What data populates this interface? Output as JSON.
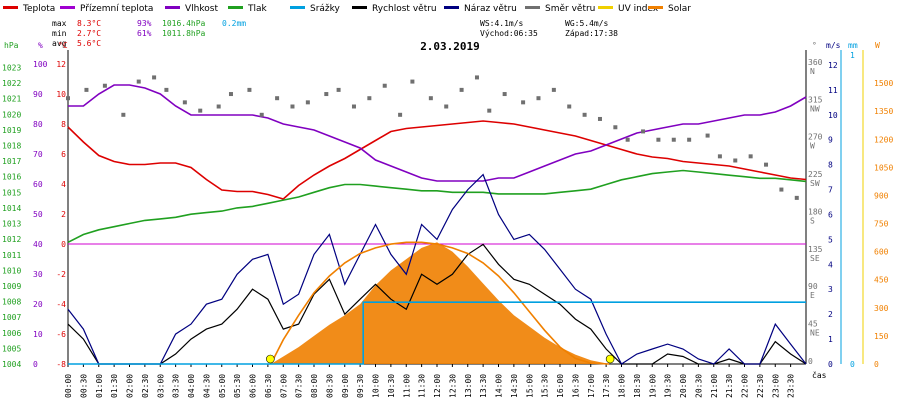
{
  "chart_data": {
    "type": "line",
    "title": "2.03.2019",
    "xlabel": "čas",
    "legend": [
      {
        "label": "Teplota",
        "color": "#dd0000"
      },
      {
        "label": "Přízemní teplota",
        "color": "#a000d0"
      },
      {
        "label": "Vlhkost",
        "color": "#8000c0"
      },
      {
        "label": "Tlak",
        "color": "#20a020"
      },
      {
        "label": "Srážky",
        "color": "#00a0e0"
      },
      {
        "label": "Rychlost větru",
        "color": "#000000"
      },
      {
        "label": "Náraz větru",
        "color": "#000080"
      },
      {
        "label": "Směr větru",
        "color": "#707070"
      },
      {
        "label": "UV index",
        "color": "#f0d000"
      },
      {
        "label": "Solar",
        "color": "#f08000"
      }
    ],
    "stats": {
      "max": {
        "label": "max",
        "temp": "8.3°C",
        "hum": "93%",
        "press": "1016.4hPa",
        "rain": "0.2mm"
      },
      "min": {
        "label": "min",
        "temp": "2.7°C",
        "hum": "61%",
        "press": "1011.8hPa"
      },
      "avg": {
        "label": "avg",
        "temp": "5.6°C"
      }
    },
    "wind_info": {
      "ws": "WS:4.1m/s",
      "wg": "WG:5.4m/s"
    },
    "sun": {
      "rise": "Východ:06:35",
      "set": "Západ:17:38"
    },
    "axis_units": {
      "hpa": "hPa",
      "pct": "%",
      "c": "°C",
      "dir": "°",
      "ms": "m/s",
      "mm": "mm",
      "w": "W"
    },
    "x_ticks": [
      "00:00",
      "00:30",
      "01:00",
      "01:30",
      "02:00",
      "02:30",
      "03:00",
      "03:30",
      "04:00",
      "04:30",
      "05:00",
      "05:30",
      "06:00",
      "06:30",
      "07:00",
      "07:30",
      "08:00",
      "08:30",
      "09:00",
      "09:30",
      "10:00",
      "10:30",
      "11:00",
      "11:30",
      "12:00",
      "12:30",
      "13:00",
      "13:30",
      "14:00",
      "14:30",
      "15:00",
      "15:30",
      "16:00",
      "16:30",
      "17:00",
      "17:30",
      "18:00",
      "18:30",
      "19:00",
      "19:30",
      "20:00",
      "20:30",
      "21:00",
      "21:30",
      "22:00",
      "22:30",
      "23:00",
      "23:30"
    ],
    "y_pressure": {
      "ticks": [
        "1023",
        "1022",
        "1021",
        "1020",
        "1019",
        "1018",
        "1017",
        "1016",
        "1015",
        "1014",
        "1013",
        "1012",
        "1011",
        "1010",
        "1009",
        "1008",
        "1007",
        "1006",
        "1005",
        "1004"
      ],
      "ylim": [
        1004,
        1023.8
      ]
    },
    "y_humidity": {
      "ticks": [
        "100",
        "90",
        "80",
        "70",
        "60",
        "50",
        "40",
        "30",
        "20",
        "10",
        "0"
      ],
      "ylim": [
        0,
        103
      ]
    },
    "y_temp": {
      "ticks": [
        "12",
        "10",
        "8",
        "6",
        "4",
        "2",
        "0",
        "-2",
        "-4",
        "-6",
        "-8"
      ],
      "ylim": [
        -8,
        12.6
      ]
    },
    "y_dir": {
      "ticks": [
        {
          "v": 360,
          "l": "360",
          "d": "N"
        },
        {
          "v": 315,
          "l": "315",
          "d": "NW"
        },
        {
          "v": 270,
          "l": "270",
          "d": "W"
        },
        {
          "v": 225,
          "l": "225",
          "d": "SW"
        },
        {
          "v": 180,
          "l": "180",
          "d": "S"
        },
        {
          "v": 135,
          "l": "135",
          "d": "SE"
        },
        {
          "v": 90,
          "l": "90",
          "d": "E"
        },
        {
          "v": 45,
          "l": "45",
          "d": "NE"
        },
        {
          "v": 0,
          "l": "0",
          "d": ""
        }
      ],
      "ylim": [
        0,
        372
      ]
    },
    "y_wind": {
      "ticks": [
        "12",
        "11",
        "10",
        "9",
        "8",
        "7",
        "6",
        "5",
        "4",
        "3",
        "2",
        "1",
        "0"
      ],
      "ylim": [
        0,
        12.4
      ]
    },
    "y_rain": {
      "ticks": [
        "1",
        "0"
      ],
      "ylim": [
        0,
        1
      ]
    },
    "y_solar": {
      "ticks": [
        "1500",
        "1350",
        "1200",
        "1050",
        "900",
        "750",
        "600",
        "450",
        "300",
        "150",
        "0"
      ],
      "ylim": [
        0,
        1650
      ]
    },
    "series": [
      {
        "name": "Teplota",
        "color": "#dd0000",
        "axis": "temp",
        "x": [
          0,
          0.5,
          1,
          1.5,
          2,
          2.5,
          3,
          3.5,
          4,
          4.5,
          5,
          5.5,
          6,
          6.5,
          7,
          7.5,
          8,
          8.5,
          9,
          9.5,
          10,
          10.5,
          11,
          11.5,
          12,
          12.5,
          13,
          13.5,
          14,
          14.5,
          15,
          15.5,
          16,
          16.5,
          17,
          17.5,
          18,
          18.5,
          19,
          19.5,
          20,
          20.5,
          21,
          21.5,
          22,
          22.5,
          23,
          23.5,
          24
        ],
        "y": [
          7.8,
          6.8,
          5.9,
          5.5,
          5.3,
          5.3,
          5.4,
          5.4,
          5.1,
          4.3,
          3.6,
          3.5,
          3.5,
          3.3,
          3.0,
          3.9,
          4.6,
          5.2,
          5.7,
          6.3,
          6.9,
          7.5,
          7.7,
          7.8,
          7.9,
          8.0,
          8.1,
          8.2,
          8.1,
          8.0,
          7.8,
          7.6,
          7.4,
          7.2,
          6.9,
          6.6,
          6.3,
          6.0,
          5.8,
          5.7,
          5.5,
          5.4,
          5.3,
          5.2,
          5.0,
          4.8,
          4.6,
          4.4,
          4.3
        ]
      },
      {
        "name": "Vlhkost",
        "color": "#8000c0",
        "axis": "humidity",
        "x": [
          0,
          0.5,
          1,
          1.5,
          2,
          2.5,
          3,
          3.5,
          4,
          4.5,
          5,
          5.5,
          6,
          6.5,
          7,
          7.5,
          8,
          8.5,
          9,
          9.5,
          10,
          10.5,
          11,
          11.5,
          12,
          12.5,
          13,
          13.5,
          14,
          14.5,
          15,
          15.5,
          16,
          16.5,
          17,
          17.5,
          18,
          18.5,
          19,
          19.5,
          20,
          20.5,
          21,
          21.5,
          22,
          22.5,
          23,
          23.5,
          24
        ],
        "y": [
          86,
          86,
          90,
          93,
          93,
          92,
          90,
          86,
          83,
          83,
          83,
          83,
          83,
          82,
          80,
          79,
          78,
          76,
          74,
          72,
          68,
          66,
          64,
          62,
          61,
          61,
          61,
          61,
          62,
          62,
          64,
          66,
          68,
          70,
          71,
          73,
          75,
          77,
          78,
          79,
          80,
          80,
          81,
          82,
          83,
          83,
          84,
          86,
          89
        ]
      },
      {
        "name": "Tlak",
        "color": "#20a020",
        "axis": "pressure",
        "x": [
          0,
          0.5,
          1,
          1.5,
          2,
          2.5,
          3,
          3.5,
          4,
          4.5,
          5,
          5.5,
          6,
          6.5,
          7,
          7.5,
          8,
          8.5,
          9,
          9.5,
          10,
          10.5,
          11,
          11.5,
          12,
          12.5,
          13,
          13.5,
          14,
          14.5,
          15,
          15.5,
          16,
          16.5,
          17,
          17.5,
          18,
          18.5,
          19,
          19.5,
          20,
          20.5,
          21,
          21.5,
          22,
          22.5,
          23,
          23.5,
          24
        ],
        "y": [
          1011.8,
          1012.3,
          1012.6,
          1012.8,
          1013.0,
          1013.2,
          1013.3,
          1013.4,
          1013.6,
          1013.7,
          1013.8,
          1014.0,
          1014.1,
          1014.3,
          1014.5,
          1014.7,
          1015.0,
          1015.3,
          1015.5,
          1015.5,
          1015.4,
          1015.3,
          1015.2,
          1015.1,
          1015.1,
          1015.0,
          1015.0,
          1015.0,
          1014.9,
          1014.9,
          1014.9,
          1014.9,
          1015.0,
          1015.1,
          1015.2,
          1015.5,
          1015.8,
          1016.0,
          1016.2,
          1016.3,
          1016.4,
          1016.3,
          1016.2,
          1016.1,
          1016.0,
          1015.9,
          1015.9,
          1015.8,
          1015.7
        ]
      },
      {
        "name": "Směr větru",
        "color": "#707070",
        "axis": "dir",
        "kind": "scatter",
        "x": [
          0,
          0.6,
          1.2,
          1.8,
          2.3,
          2.8,
          3.2,
          3.8,
          4.3,
          4.9,
          5.3,
          5.9,
          6.3,
          6.8,
          7.3,
          7.8,
          8.4,
          8.8,
          9.3,
          9.8,
          10.3,
          10.8,
          11.2,
          11.8,
          12.3,
          12.8,
          13.3,
          13.7,
          14.2,
          14.8,
          15.3,
          15.8,
          16.3,
          16.8,
          17.3,
          17.8,
          18.2,
          18.7,
          19.2,
          19.7,
          20.2,
          20.8,
          21.2,
          21.7,
          22.2,
          22.7,
          23.2,
          23.7
        ],
        "y": [
          320,
          330,
          335,
          300,
          340,
          345,
          330,
          315,
          305,
          310,
          325,
          330,
          300,
          320,
          310,
          315,
          325,
          330,
          310,
          320,
          335,
          300,
          340,
          320,
          310,
          330,
          345,
          305,
          325,
          315,
          320,
          330,
          310,
          300,
          295,
          285,
          270,
          280,
          270,
          270,
          270,
          275,
          250,
          245,
          250,
          240,
          210,
          200
        ]
      },
      {
        "name": "Rychlost větru",
        "color": "#000000",
        "axis": "wind",
        "x": [
          0,
          0.5,
          1,
          1.5,
          2,
          2.5,
          3,
          3.5,
          4,
          4.5,
          5,
          5.5,
          6,
          6.5,
          7,
          7.5,
          8,
          8.5,
          9,
          9.5,
          10,
          10.5,
          11,
          11.5,
          12,
          12.5,
          13,
          13.5,
          14,
          14.5,
          15,
          15.5,
          16,
          16.5,
          17,
          17.5,
          18,
          18.5,
          19,
          19.5,
          20,
          20.5,
          21,
          21.5,
          22,
          22.5,
          23,
          23.5,
          24
        ],
        "y": [
          1.6,
          1.0,
          0,
          0,
          0,
          0,
          0,
          0.4,
          1.0,
          1.4,
          1.6,
          2.2,
          3.0,
          2.6,
          1.4,
          1.6,
          2.8,
          3.4,
          2.0,
          2.6,
          3.2,
          2.6,
          2.2,
          3.6,
          3.2,
          3.6,
          4.4,
          4.8,
          4.0,
          3.4,
          3.2,
          2.8,
          2.4,
          1.8,
          1.4,
          0.6,
          0,
          0,
          0,
          0.4,
          0.3,
          0,
          0,
          0.2,
          0,
          0,
          0.9,
          0.4,
          0
        ]
      },
      {
        "name": "Náraz větru",
        "color": "#000080",
        "axis": "wind",
        "x": [
          0,
          0.5,
          1,
          1.5,
          2,
          2.5,
          3,
          3.5,
          4,
          4.5,
          5,
          5.5,
          6,
          6.5,
          7,
          7.5,
          8,
          8.5,
          9,
          9.5,
          10,
          10.5,
          11,
          11.5,
          12,
          12.5,
          13,
          13.5,
          14,
          14.5,
          15,
          15.5,
          16,
          16.5,
          17,
          17.5,
          18,
          18.5,
          19,
          19.5,
          20,
          20.5,
          21,
          21.5,
          22,
          22.5,
          23,
          23.5,
          24
        ],
        "y": [
          2.2,
          1.4,
          0,
          0,
          0,
          0,
          0,
          1.2,
          1.6,
          2.4,
          2.6,
          3.6,
          4.2,
          4.4,
          2.4,
          2.8,
          4.4,
          5.2,
          3.2,
          4.4,
          5.6,
          4.4,
          3.6,
          5.6,
          5.0,
          6.2,
          7.0,
          7.6,
          6.0,
          5.0,
          5.2,
          4.6,
          3.8,
          3.0,
          2.6,
          1.2,
          0,
          0.4,
          0.6,
          0.8,
          0.6,
          0.2,
          0,
          0.6,
          0,
          0,
          1.6,
          0.8,
          0
        ]
      },
      {
        "name": "Solar",
        "color": "#f08000",
        "axis": "solar",
        "kind": "area",
        "x": [
          6.6,
          7,
          7.5,
          8,
          8.5,
          9,
          9.5,
          10,
          10.5,
          11,
          11.5,
          12,
          12.5,
          13,
          13.5,
          14,
          14.5,
          15,
          15.5,
          16,
          16.5,
          17,
          17.6
        ],
        "y": [
          0,
          40,
          90,
          150,
          210,
          260,
          320,
          420,
          500,
          560,
          620,
          650,
          600,
          520,
          430,
          340,
          260,
          200,
          140,
          90,
          50,
          20,
          0
        ]
      },
      {
        "name": "Solar max",
        "color": "#f08000",
        "axis": "solar",
        "x": [
          6.6,
          7,
          7.5,
          8,
          8.5,
          9,
          9.5,
          10,
          10.5,
          11,
          11.5,
          12,
          12.5,
          13,
          13.5,
          14,
          14.5,
          15,
          15.5,
          16,
          16.5,
          17,
          17.6
        ],
        "y": [
          0,
          130,
          260,
          380,
          470,
          540,
          590,
          620,
          640,
          650,
          650,
          640,
          620,
          590,
          540,
          470,
          380,
          280,
          180,
          90,
          30,
          5,
          0
        ]
      },
      {
        "name": "Srážky",
        "color": "#00a0e0",
        "axis": "rain",
        "x": [
          0,
          9.6,
          9.6,
          24
        ],
        "y": [
          0,
          0,
          0.2,
          0.2
        ]
      }
    ]
  }
}
